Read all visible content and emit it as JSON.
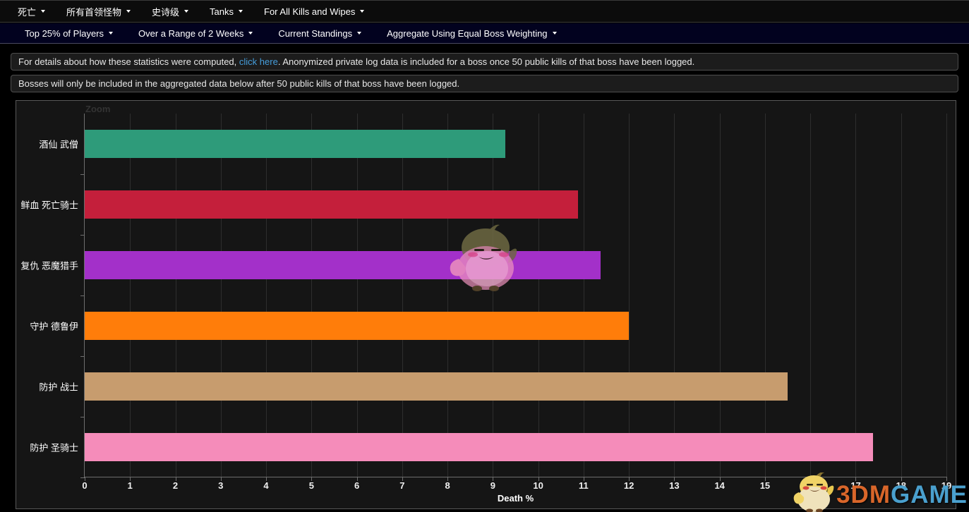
{
  "top_nav": {
    "items": [
      {
        "label": "死亡"
      },
      {
        "label": "所有首领怪物"
      },
      {
        "label": "史诗级"
      },
      {
        "label": "Tanks"
      },
      {
        "label": "For All Kills and Wipes"
      }
    ]
  },
  "filter_nav": {
    "items": [
      {
        "label": "Top 25% of Players"
      },
      {
        "label": "Over a Range of 2 Weeks"
      },
      {
        "label": "Current Standings"
      },
      {
        "label": "Aggregate Using Equal Boss Weighting"
      }
    ]
  },
  "notices": {
    "first_prefix": "For details about how these statistics were computed, ",
    "first_link": "click here",
    "first_suffix": ". Anonymized private log data is included for a boss once 50 public kills of that boss have been logged.",
    "second": "Bosses will only be included in the aggregated data below after 50 public kills of that boss have been logged."
  },
  "chart": {
    "zoom_label": "Zoom"
  },
  "chart_data": {
    "type": "bar",
    "orientation": "horizontal",
    "title": "",
    "xlabel": "Death %",
    "ylabel": "",
    "xlim": [
      0,
      19
    ],
    "x_ticks": [
      0,
      1,
      2,
      3,
      4,
      5,
      6,
      7,
      8,
      9,
      10,
      11,
      12,
      13,
      14,
      15,
      16,
      17,
      18,
      19
    ],
    "grid": true,
    "categories": [
      "酒仙 武僧",
      "鲜血 死亡骑士",
      "复仇 恶魔猎手",
      "守护 德鲁伊",
      "防护 战士",
      "防护 圣骑士"
    ],
    "values": [
      9.27,
      10.87,
      11.38,
      12.0,
      15.5,
      17.38
    ],
    "colors": [
      "#2e9b7a",
      "#c41f3b",
      "#a330c9",
      "#ff7d0a",
      "#c79c6e",
      "#f58cba"
    ]
  },
  "watermark": {
    "brand_3dm": "3DM",
    "brand_game": "GAME"
  }
}
